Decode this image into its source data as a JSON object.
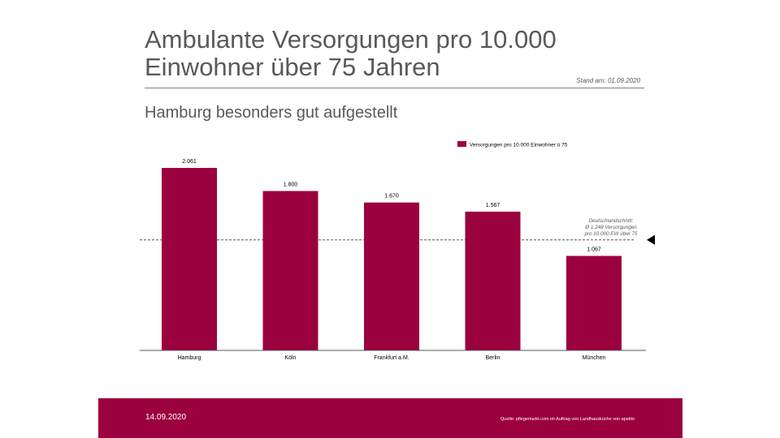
{
  "title": "Ambulante Versorgungen pro 10.000 Einwohner über 75 Jahren",
  "stand": "Stand am: 01.09.2020",
  "subtitle": "Hamburg besonders  gut aufgestellt",
  "footer": {
    "date": "14.09.2020",
    "source": "Quelle: pflegemarkt.com  im Auftrag  von Landhausküche   von apetito"
  },
  "colors": {
    "accent": "#9b003f"
  },
  "chart_data": {
    "type": "bar",
    "categories": [
      "Hamburg",
      "Köln",
      "Frankfurt a.M.",
      "Berlin",
      "München"
    ],
    "series": [
      {
        "name": "Versorgungen pro 10.000 Einwohner ü 75",
        "values": [
          2061,
          1800,
          1670,
          1567,
          1067
        ]
      }
    ],
    "data_labels": [
      "2.061",
      "1.800",
      "1.670",
      "1.567",
      "1.067"
    ],
    "legend": "top-right",
    "ylim": [
      0,
      2061
    ],
    "reference_line": {
      "value": 1248,
      "label": [
        "Deutschlandschnitt:",
        "Ø 1.248 Versorgungen",
        "pro 10.000 EW über 75"
      ]
    }
  }
}
